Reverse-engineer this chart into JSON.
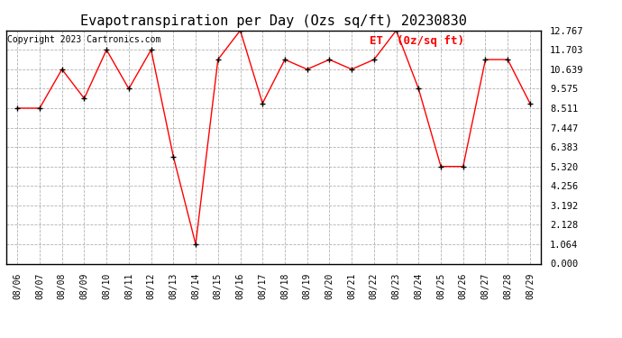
{
  "title": "Evapotranspiration per Day (Ozs sq/ft) 20230830",
  "copyright": "Copyright 2023 Cartronics.com",
  "legend_label": "ET  (0z/sq ft)",
  "dates": [
    "08/06",
    "08/07",
    "08/08",
    "08/09",
    "08/10",
    "08/11",
    "08/12",
    "08/13",
    "08/14",
    "08/15",
    "08/16",
    "08/17",
    "08/18",
    "08/19",
    "08/20",
    "08/21",
    "08/22",
    "08/23",
    "08/24",
    "08/25",
    "08/26",
    "08/27",
    "08/28",
    "08/29"
  ],
  "values": [
    8.511,
    8.511,
    10.639,
    9.043,
    11.703,
    9.575,
    11.703,
    5.852,
    1.064,
    11.171,
    12.767,
    8.776,
    11.171,
    10.639,
    11.171,
    10.639,
    11.171,
    12.767,
    9.575,
    5.32,
    5.32,
    11.171,
    11.171,
    8.776
  ],
  "yticks": [
    0.0,
    1.064,
    2.128,
    3.192,
    4.256,
    5.32,
    6.383,
    7.447,
    8.511,
    9.575,
    10.639,
    11.703,
    12.767
  ],
  "ylim": [
    0.0,
    12.767
  ],
  "line_color": "red",
  "marker_color": "black",
  "title_color": "black",
  "copyright_color": "black",
  "legend_color": "red",
  "bg_color": "white",
  "grid_color": "#aaaaaa",
  "title_fontsize": 11,
  "copyright_fontsize": 7,
  "legend_fontsize": 9,
  "tick_fontsize": 7,
  "ytick_fontsize": 7.5
}
